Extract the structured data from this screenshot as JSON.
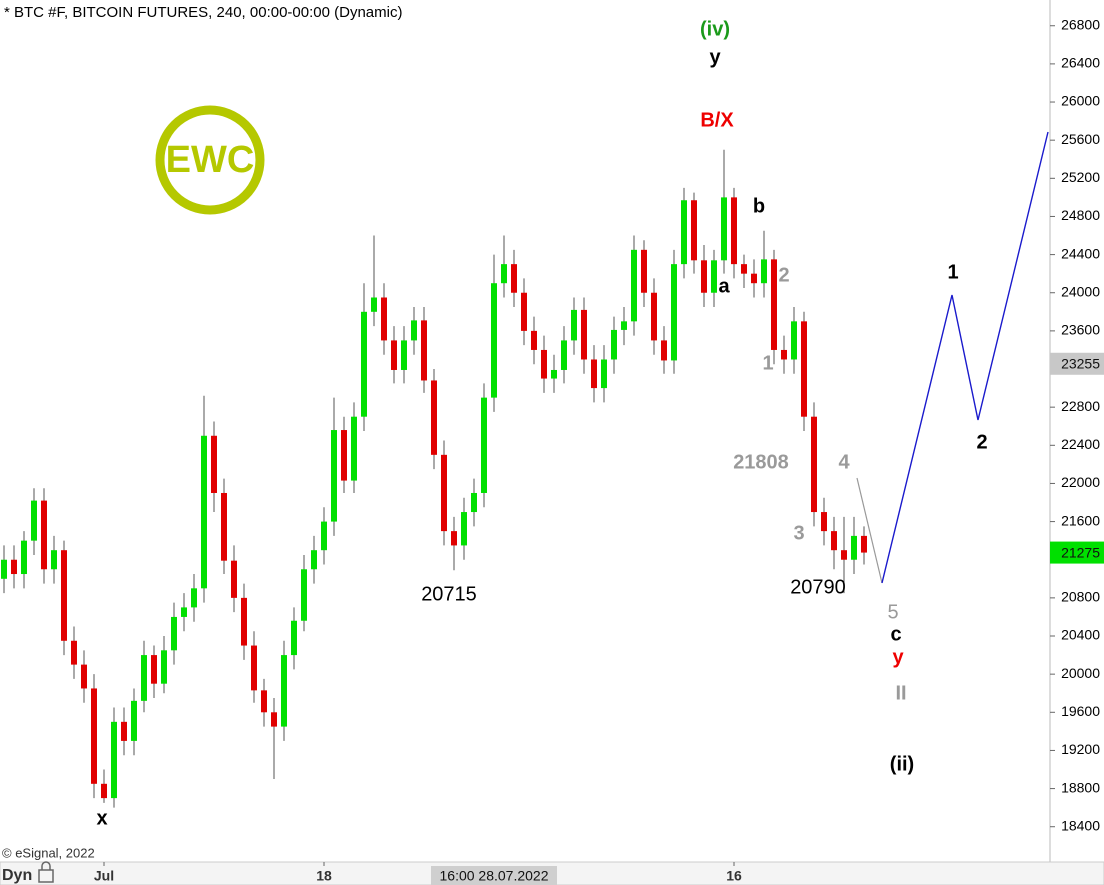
{
  "chart_data": {
    "type": "candlestick",
    "title": "* BTC #F, BITCOIN FUTURES, 240, 00:00-00:00 (Dynamic)",
    "credit": "© eSignal, 2022",
    "mode_label": "Dyn",
    "logo": "EWC",
    "up_color": "#00e000",
    "down_color": "#e00000",
    "wick_color": "#555555",
    "grid": false,
    "ylim": [
      18030,
      27070
    ],
    "yticks": [
      18400,
      18800,
      19200,
      19600,
      20000,
      20400,
      20800,
      21200,
      21600,
      22000,
      22400,
      22800,
      23200,
      23600,
      24000,
      24400,
      24800,
      25200,
      25600,
      26000,
      26400,
      26800
    ],
    "xticks": [
      {
        "value": 10,
        "label": "Jul"
      },
      {
        "value": 32,
        "label": "18"
      },
      {
        "value": 73,
        "label": "16"
      }
    ],
    "crosshair_x": {
      "value": 49,
      "label": "16:00 28.07.2022"
    },
    "price_markers": [
      23255,
      21275
    ],
    "price_marker_colors": [
      "#c8c8c8",
      "#00e000"
    ],
    "open": [
      21000,
      21200,
      21050,
      21400,
      21820,
      21100,
      21300,
      20350,
      20100,
      19850,
      18850,
      18700,
      19500,
      19300,
      19720,
      20200,
      19900,
      20250,
      20600,
      20700,
      20900,
      22500,
      21900,
      21190,
      20800,
      20300,
      19830,
      19600,
      19450,
      20200,
      20560,
      21100,
      21300,
      21600,
      22560,
      22030,
      22700,
      23800,
      23950,
      23500,
      23190,
      23500,
      23710,
      23080,
      22300,
      21500,
      21350,
      21700,
      21900,
      22900,
      24100,
      24300,
      24000,
      23600,
      23400,
      23100,
      23190,
      23500,
      23820,
      23300,
      23000,
      23300,
      23610,
      23700,
      24450,
      24000,
      23500,
      23290,
      24300,
      24970,
      24340,
      24000,
      24340,
      25000,
      24300,
      24200,
      24100,
      24350,
      23400,
      23300,
      23700,
      22700,
      21700,
      21500,
      21300,
      21200,
      21450
    ],
    "high": [
      21350,
      21350,
      21500,
      21950,
      21950,
      21450,
      21400,
      20500,
      20250,
      20000,
      19000,
      19650,
      19650,
      19850,
      20350,
      20300,
      20400,
      20750,
      20850,
      21050,
      22920,
      22650,
      22050,
      21350,
      20950,
      20450,
      19950,
      19750,
      20350,
      20700,
      21250,
      21450,
      21750,
      22900,
      22700,
      22850,
      24100,
      24600,
      24100,
      23650,
      23650,
      23850,
      23850,
      23200,
      22450,
      21650,
      21850,
      22050,
      23050,
      24400,
      24600,
      24450,
      24150,
      23750,
      23550,
      23350,
      23650,
      23950,
      23950,
      23450,
      23450,
      23750,
      23850,
      24600,
      24550,
      24150,
      23650,
      24450,
      25100,
      25050,
      24500,
      24450,
      25500,
      25100,
      24400,
      24350,
      24650,
      24450,
      23550,
      23850,
      23800,
      22850,
      21850,
      21650,
      21650,
      21650,
      21550
    ],
    "low": [
      20850,
      20900,
      20900,
      21250,
      20950,
      20950,
      20200,
      19950,
      19700,
      18700,
      18650,
      18600,
      19150,
      19150,
      19600,
      19750,
      19800,
      20100,
      20450,
      20550,
      20750,
      21700,
      21050,
      20650,
      20150,
      19700,
      19450,
      18900,
      19300,
      20050,
      20450,
      20950,
      21150,
      21450,
      21900,
      21900,
      22550,
      23650,
      23350,
      23050,
      23050,
      23350,
      22950,
      22150,
      21350,
      21090,
      21200,
      21550,
      21750,
      22750,
      23950,
      23850,
      23450,
      23250,
      22950,
      22950,
      23050,
      23350,
      23150,
      22850,
      22850,
      23150,
      23450,
      23550,
      23850,
      23350,
      23150,
      23150,
      24150,
      24200,
      23850,
      23850,
      24200,
      24150,
      24050,
      23950,
      23950,
      23250,
      23150,
      23150,
      22550,
      21550,
      21350,
      21100,
      20850,
      21050,
      21150
    ],
    "close": [
      21200,
      21050,
      21400,
      21820,
      21100,
      21300,
      20350,
      20100,
      19850,
      18850,
      18700,
      19500,
      19300,
      19720,
      20200,
      19900,
      20250,
      20600,
      20700,
      20900,
      22500,
      21900,
      21190,
      20800,
      20300,
      19830,
      19600,
      19450,
      20200,
      20560,
      21100,
      21300,
      21600,
      22560,
      22030,
      22700,
      23800,
      23950,
      23500,
      23190,
      23500,
      23710,
      23080,
      22300,
      21500,
      21350,
      21700,
      21900,
      22900,
      24100,
      24300,
      24000,
      23600,
      23400,
      23100,
      23190,
      23500,
      23820,
      23300,
      23000,
      23300,
      23610,
      23700,
      24450,
      24000,
      23500,
      23290,
      24300,
      24970,
      24340,
      24000,
      24340,
      25000,
      24300,
      24200,
      24100,
      24350,
      23400,
      23300,
      23700,
      22700,
      21700,
      21500,
      21300,
      21200,
      21450,
      21275
    ],
    "annotations": [
      "(iv)",
      "y",
      "B/X",
      "b",
      "a",
      "2",
      "1",
      "21808",
      "4",
      "3",
      "20790",
      "20715",
      "x",
      "5",
      "c",
      "y",
      "II",
      "(ii)",
      "1",
      "2"
    ]
  }
}
